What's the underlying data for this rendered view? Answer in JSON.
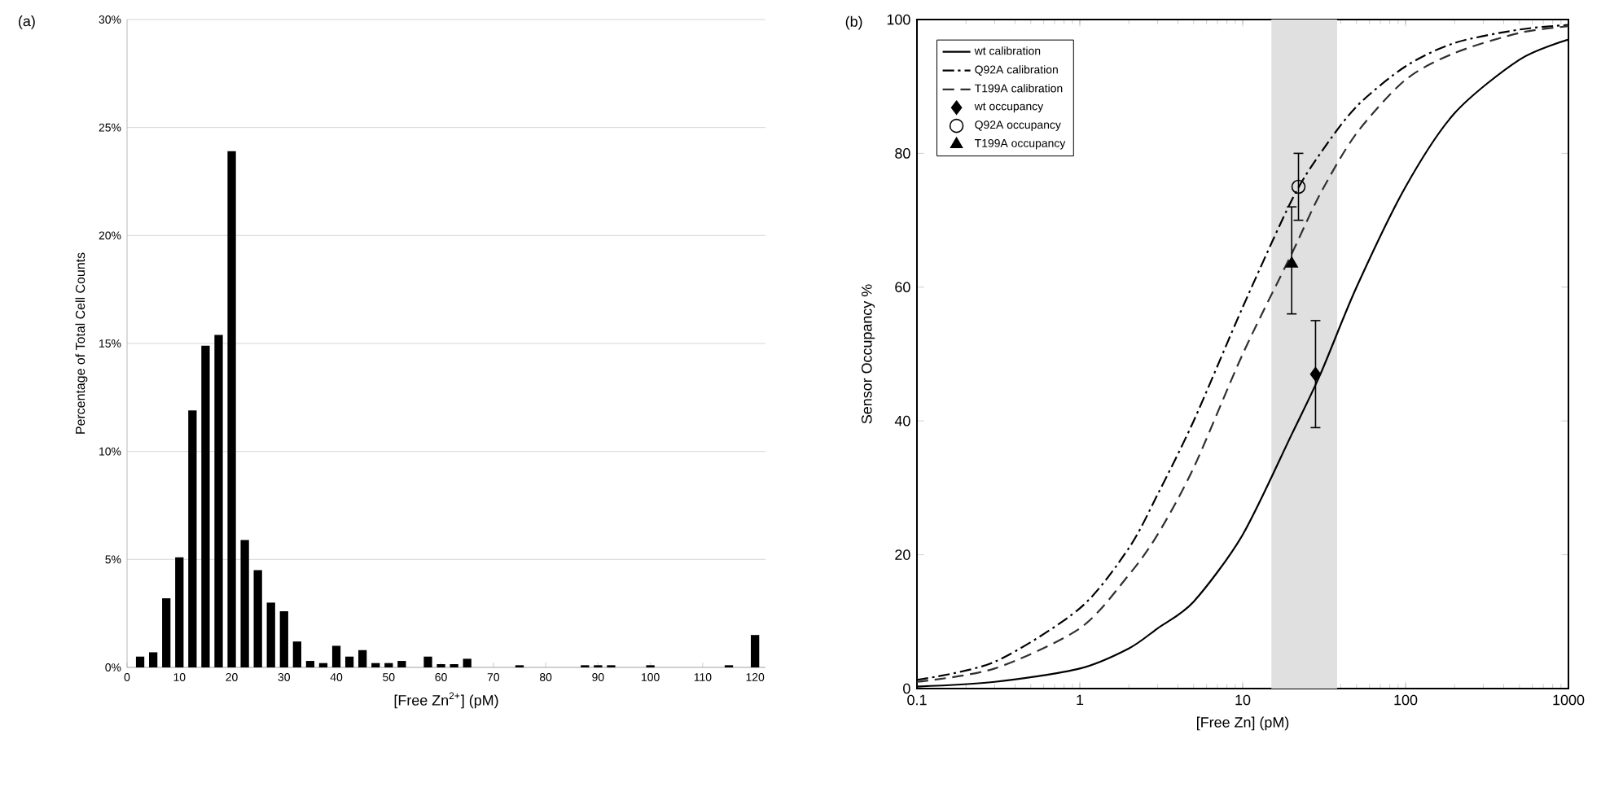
{
  "chart_data": [
    {
      "type": "bar",
      "title": "(a)",
      "xlabel": "[Free Zn$^{2+}$] (pM)",
      "ylabel": "Percentage of Total Cell Counts",
      "x": [
        2.5,
        5,
        7.5,
        10,
        12.5,
        15,
        17.5,
        20,
        22.5,
        25,
        27.5,
        30,
        32.5,
        35,
        37.5,
        40,
        42.5,
        45,
        47.5,
        50,
        52.5,
        57.5,
        60,
        62.5,
        65,
        75,
        87.5,
        90,
        92.5,
        100,
        115,
        120
      ],
      "values": [
        0.5,
        0.7,
        3.2,
        5.1,
        11.9,
        14.9,
        15.4,
        23.9,
        5.9,
        4.5,
        3.0,
        2.6,
        1.2,
        0.3,
        0.2,
        1.0,
        0.5,
        0.8,
        0.2,
        0.2,
        0.3,
        0.5,
        0.15,
        0.15,
        0.4,
        0.1,
        0.1,
        0.1,
        0.1,
        0.1,
        0.1,
        1.5
      ],
      "color": "#000000",
      "xlim": [
        0,
        122
      ],
      "ylim": [
        0,
        30
      ],
      "xticks": [
        0,
        10,
        20,
        30,
        40,
        50,
        60,
        70,
        80,
        90,
        100,
        110,
        120
      ],
      "yticks": [
        {
          "value": 0,
          "label": "0%"
        },
        {
          "value": 5,
          "label": "5%"
        },
        {
          "value": 10,
          "label": "10%"
        },
        {
          "value": 15,
          "label": "15%"
        },
        {
          "value": 20,
          "label": "20%"
        },
        {
          "value": 25,
          "label": "25%"
        },
        {
          "value": 30,
          "label": "30%"
        }
      ],
      "grid": "y"
    },
    {
      "type": "line",
      "title": "(b)",
      "xlabel": "[Free Zn] (pM)",
      "ylabel": "Sensor Occupancy %",
      "log": "x",
      "xlim": [
        0.1,
        1000
      ],
      "ylim": [
        0,
        100
      ],
      "xticks": [
        0.1,
        1,
        10,
        100,
        1000
      ],
      "yticks": [
        0,
        20,
        40,
        60,
        80,
        100
      ],
      "legend": "top left",
      "bands": [
        {
          "axis": "x",
          "from": 15,
          "to": 38,
          "color": "#e0e0e0"
        }
      ],
      "series": [
        {
          "name": "wt calibration",
          "color": "#000000",
          "line_style": "solid",
          "x": [
            0.1,
            0.3,
            1,
            2,
            3,
            5,
            10,
            20,
            30,
            50,
            100,
            200,
            500,
            1000
          ],
          "values": [
            0.3,
            1,
            3,
            6,
            9,
            13,
            23,
            38,
            47,
            60,
            75,
            86,
            94,
            97
          ]
        },
        {
          "name": "Q92A calibration",
          "color": "#000000",
          "line_style": "dashdot",
          "x": [
            0.1,
            0.3,
            1,
            2,
            3,
            5,
            10,
            20,
            30,
            50,
            100,
            200,
            500,
            1000
          ],
          "values": [
            1.3,
            4,
            12,
            21,
            29,
            40,
            57,
            73,
            80,
            87,
            93,
            96.5,
            98.5,
            99.2
          ]
        },
        {
          "name": "T199A calibration",
          "color": "#303030",
          "line_style": "dashed",
          "x": [
            0.1,
            0.3,
            1,
            2,
            3,
            5,
            10,
            20,
            30,
            50,
            100,
            200,
            500,
            1000
          ],
          "values": [
            1,
            3,
            9,
            17,
            23,
            33,
            50,
            65,
            74,
            83,
            91,
            95,
            98,
            99
          ]
        },
        {
          "name": "wt occupancy",
          "type": "scatter",
          "marker": "diamond",
          "color": "#000000",
          "x": [
            28
          ],
          "values": [
            47
          ],
          "errors": [
            [
              39,
              55
            ]
          ]
        },
        {
          "name": "Q92A occupancy",
          "type": "scatter",
          "marker": "circle",
          "color": "#000000",
          "x": [
            22
          ],
          "values": [
            75
          ],
          "errors": [
            [
              70,
              80
            ]
          ]
        },
        {
          "name": "T199A occupancy",
          "type": "scatter",
          "marker": "triangle",
          "color": "#000000",
          "x": [
            20
          ],
          "values": [
            63.5
          ],
          "errors": [
            [
              56,
              72
            ]
          ]
        }
      ]
    }
  ]
}
